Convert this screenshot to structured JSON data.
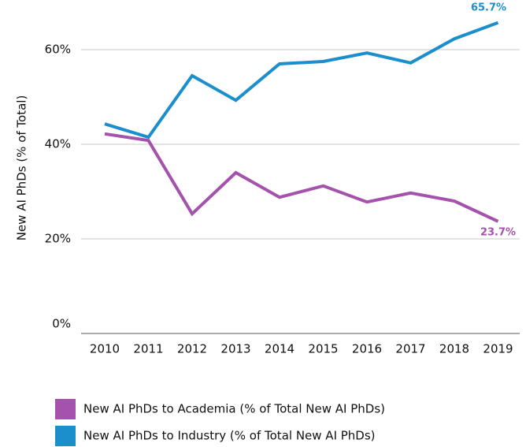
{
  "chart_data": {
    "type": "line",
    "y_label": "New AI PhDs (% of Total)",
    "categories": [
      "2010",
      "2011",
      "2012",
      "2013",
      "2014",
      "2015",
      "2016",
      "2017",
      "2018",
      "2019"
    ],
    "series": [
      {
        "name": "New AI PhDs to Academia (% of Total New AI PhDs)",
        "color": "#a452ac",
        "values": [
          42.2,
          40.8,
          25.3,
          34,
          28.8,
          31.2,
          27.8,
          29.7,
          28,
          23.7
        ],
        "value_labels": [
          null,
          null,
          null,
          null,
          null,
          null,
          null,
          null,
          null,
          "23.7%"
        ]
      },
      {
        "name": "New AI PhDs to Industry (% of Total New AI PhDs)",
        "color": "#1a8fcb",
        "values": [
          44.3,
          41.5,
          54.5,
          49.3,
          57,
          57.5,
          59.3,
          57.2,
          62.3,
          65.7
        ],
        "value_labels": [
          null,
          null,
          null,
          null,
          null,
          null,
          null,
          null,
          null,
          "65.7%"
        ]
      }
    ],
    "ylim": [
      0,
      70
    ],
    "yticks": [
      {
        "value": 0,
        "label": "0%"
      },
      {
        "value": 20,
        "label": "20%"
      },
      {
        "value": 40,
        "label": "40%"
      },
      {
        "value": 60,
        "label": "60%"
      }
    ],
    "grid": true
  }
}
